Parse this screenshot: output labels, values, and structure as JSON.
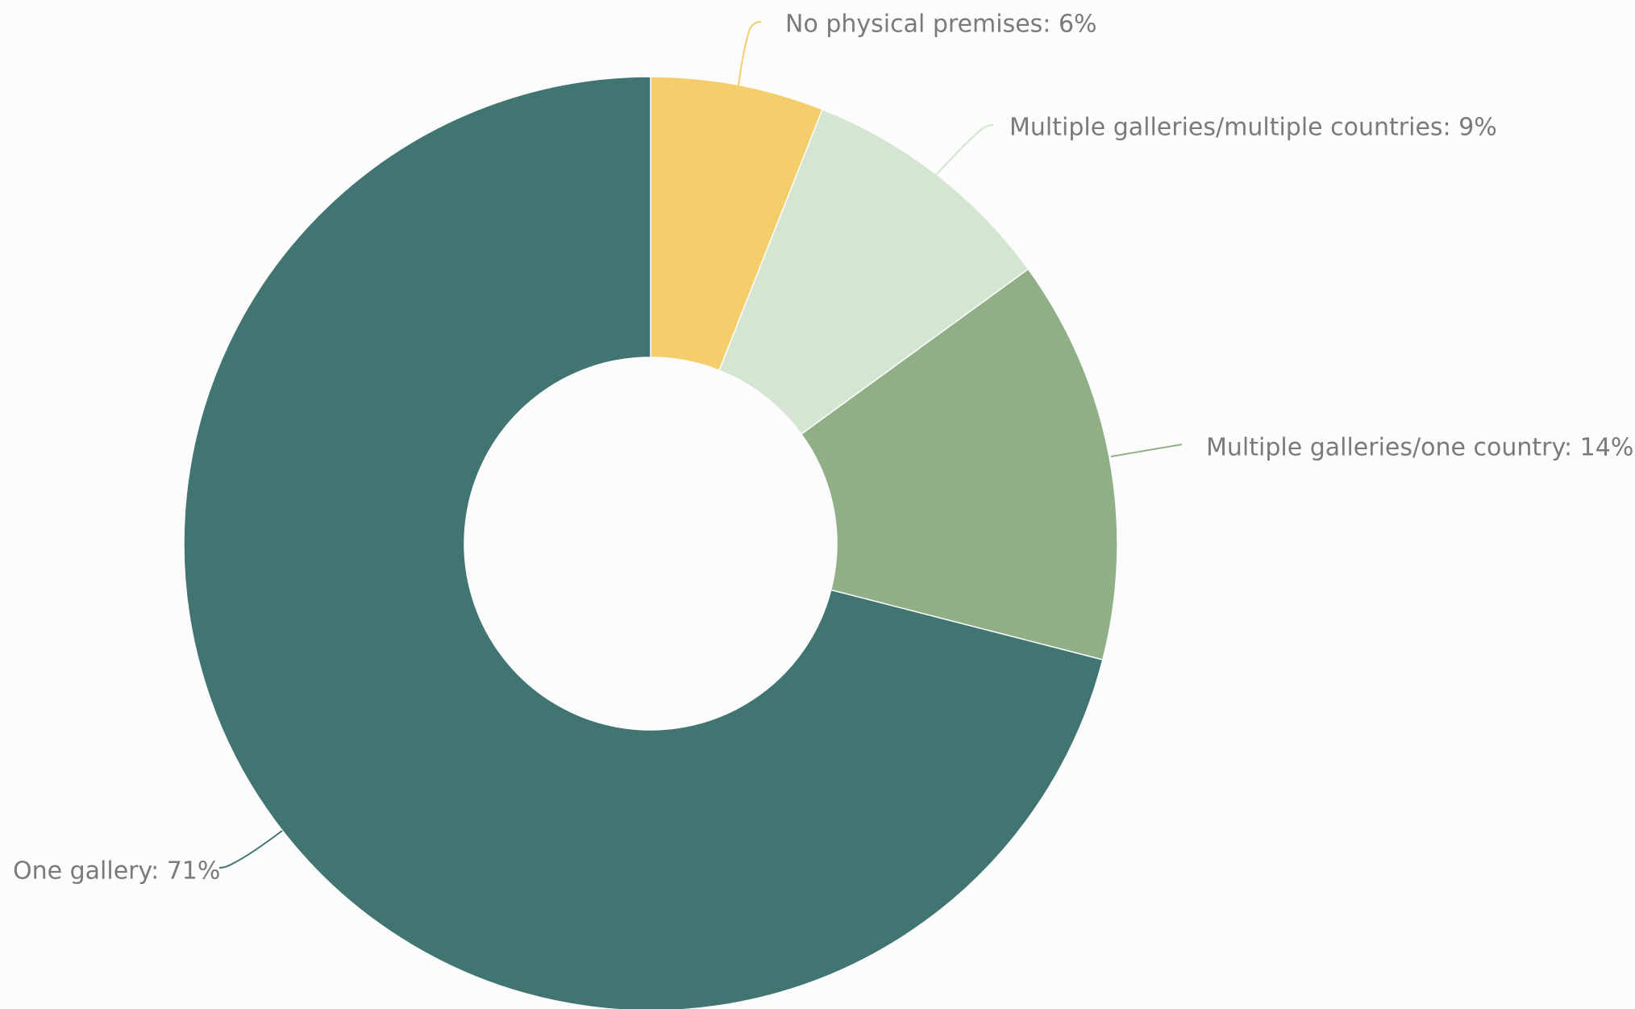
{
  "chart_data": {
    "type": "pie",
    "variant": "donut",
    "start_angle_deg": 0,
    "direction": "clockwise",
    "slices": [
      {
        "name": "No physical premises",
        "value": 6,
        "label": "No physical premises: 6%",
        "color": "#f3ce6b"
      },
      {
        "name": "Multiple galleries/multiple countries",
        "value": 9,
        "label": "Multiple galleries/multiple countries: 9%",
        "color": "#d4e6d1"
      },
      {
        "name": "Multiple galleries/one country",
        "value": 14,
        "label": "Multiple galleries/one country: 14%",
        "color": "#90af87"
      },
      {
        "name": "One gallery",
        "value": 71,
        "label": "One gallery: 71%",
        "color": "#417571"
      }
    ],
    "title": "",
    "legend": "none",
    "data_labels": "outside-with-connectors"
  }
}
